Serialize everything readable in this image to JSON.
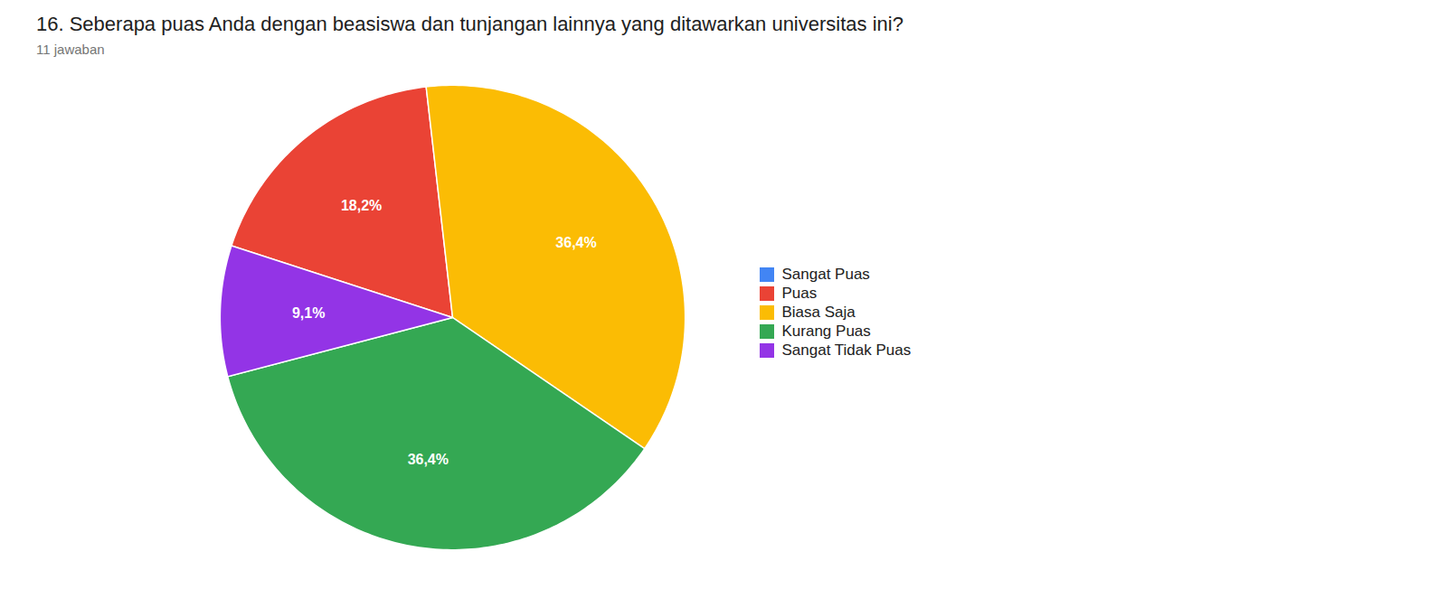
{
  "chart_data": {
    "type": "pie",
    "title": "16.  Seberapa puas Anda dengan beasiswa dan tunjangan lainnya yang ditawarkan universitas ini?",
    "subtitle": "11 jawaban",
    "categories": [
      "Sangat Puas",
      "Puas",
      "Biasa Saja",
      "Kurang Puas",
      "Sangat Tidak Puas"
    ],
    "values": [
      0,
      18.2,
      36.4,
      36.4,
      9.1
    ],
    "value_labels": [
      null,
      "18,2%",
      "36,4%",
      "36,4%",
      "9,1%"
    ],
    "colors": [
      "#4285F4",
      "#EA4335",
      "#FBBC04",
      "#34A853",
      "#9334E6"
    ],
    "data_labels": true,
    "legend": "right"
  }
}
